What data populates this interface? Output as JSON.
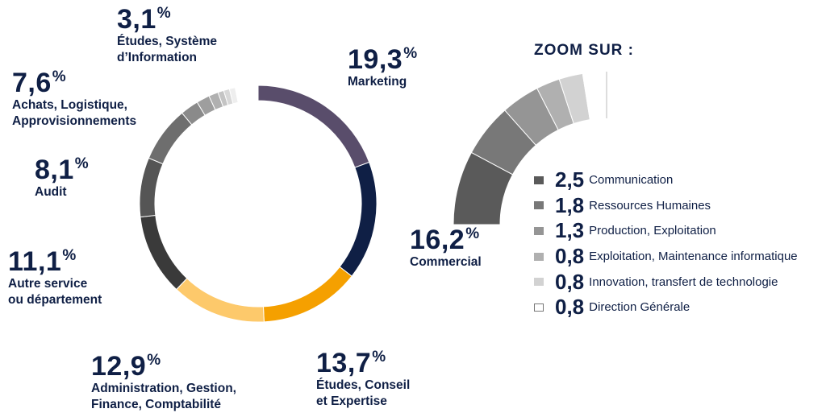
{
  "chart_data": [
    {
      "type": "pie",
      "slices": [
        {
          "value_label": "19,3",
          "unit": "%",
          "value": 19.3,
          "label_lines": [
            "Marketing"
          ],
          "color": "#594d6b"
        },
        {
          "value_label": "16,2",
          "unit": "%",
          "value": 16.2,
          "label_lines": [
            "Commercial"
          ],
          "color": "#0f1f45"
        },
        {
          "value_label": "13,7",
          "unit": "%",
          "value": 13.7,
          "label_lines": [
            "Études, Conseil",
            "et Expertise"
          ],
          "color": "#f5a000"
        },
        {
          "value_label": "12,9",
          "unit": "%",
          "value": 12.9,
          "label_lines": [
            "Administration, Gestion,",
            "Finance, Comptabilité"
          ],
          "color": "#fdc96b"
        },
        {
          "value_label": "11,1",
          "unit": "%",
          "value": 11.1,
          "label_lines": [
            "Autre service",
            "ou département"
          ],
          "color": "#3a3a3a"
        },
        {
          "value_label": "8,1",
          "unit": "%",
          "value": 8.1,
          "label_lines": [
            "Audit"
          ],
          "color": "#555555"
        },
        {
          "value_label": "7,6",
          "unit": "%",
          "value": 7.6,
          "label_lines": [
            "Achats, Logistique,",
            "Approvisionnements"
          ],
          "color": "#6e6e6e"
        },
        {
          "value": 2.5,
          "color": "#8a8a8a"
        },
        {
          "value": 1.8,
          "color": "#9e9e9e"
        },
        {
          "value": 1.3,
          "color": "#b0b0b0"
        },
        {
          "value": 0.8,
          "color": "#c4c4c4"
        },
        {
          "value": 0.8,
          "color": "#d8d8d8"
        },
        {
          "value": 0.8,
          "color": "#eeeeee"
        },
        {
          "value_label": "3,1",
          "unit": "%",
          "value": 3.1,
          "label_lines": [
            "Études, Système",
            "d’Information"
          ],
          "color": "#ffffff"
        }
      ]
    },
    {
      "type": "pie",
      "title": "ZOOM SUR :",
      "items": [
        {
          "value_label": "2,5",
          "value": 2.5,
          "label": "Communication",
          "color": "#5a5a5a"
        },
        {
          "value_label": "1,8",
          "value": 1.8,
          "label": "Ressources Humaines",
          "color": "#787878"
        },
        {
          "value_label": "1,3",
          "value": 1.3,
          "label": "Production, Exploitation",
          "color": "#959595"
        },
        {
          "value_label": "0,8",
          "value": 0.8,
          "label": "Exploitation, Maintenance informatique",
          "color": "#b0b0b0"
        },
        {
          "value_label": "0,8",
          "value": 0.8,
          "label": "Innovation, transfert de technologie",
          "color": "#d2d2d2"
        },
        {
          "value_label": "0,8",
          "value": 0.8,
          "label": "Direction Générale",
          "color": "#ffffff"
        }
      ]
    }
  ]
}
